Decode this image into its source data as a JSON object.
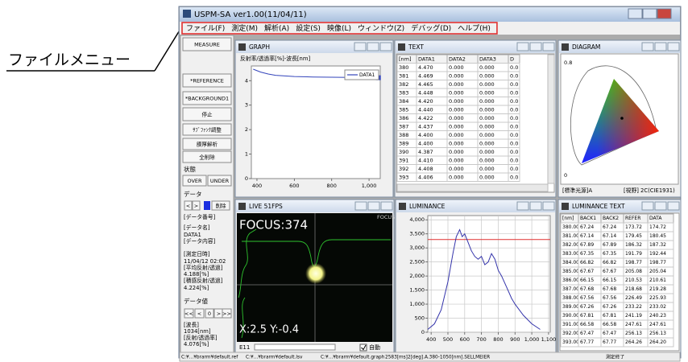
{
  "window": {
    "title": "USPM-SA ver1.00(11/04/11)"
  },
  "annotation": "ファイルメニュー",
  "menu": [
    "ファイル(F)",
    "測定(M)",
    "解析(A)",
    "設定(S)",
    "映像(L)",
    "ウィンドウ(Z)",
    "デバッグ(D)",
    "ヘルプ(H)"
  ],
  "sidebar": {
    "buttons": [
      "MEASURE",
      "*REFERENCE",
      "*BACKGROUND1",
      "停止",
      "ｻﾌﾞﾌｧﾝｸ調整",
      "膜厚解析",
      "全削除"
    ],
    "state_label": "状態",
    "state_buttons": [
      "OVER",
      "UNDER"
    ],
    "data_label": "データ",
    "data_nav": [
      "<",
      ">"
    ],
    "delete": "削除",
    "info": [
      "[データ番号]",
      "[データ名]",
      "DATA1",
      "[データ内容]",
      "[測定日時]",
      "11/04/12 02:02",
      "[平均反射/透過]",
      "4.188[%]",
      "[積感反射/透過]",
      "4.224[%]"
    ],
    "value_label": "データ値",
    "value_nav": [
      "<<",
      "<",
      "0",
      ">",
      ">>"
    ],
    "value_info": [
      "[波長]",
      "1034[nm]",
      "[反射/透過率]",
      "4.076[%]"
    ]
  },
  "panels": {
    "graph": "GRAPH",
    "text": "TEXT",
    "diagram": "DIAGRAM",
    "live": "LIVE 51FPS",
    "luminance": "LUMINANCE",
    "luminance_text": "LUMINANCE TEXT"
  },
  "text_table": {
    "header": [
      "[nm]",
      "DATA1",
      "DATA2",
      "DATA3",
      "D"
    ],
    "rows": [
      [
        "380",
        "4.470",
        "0.000",
        "0.000",
        "0.0"
      ],
      [
        "381",
        "4.469",
        "0.000",
        "0.000",
        "0.0"
      ],
      [
        "382",
        "4.465",
        "0.000",
        "0.000",
        "0.0"
      ],
      [
        "383",
        "4.448",
        "0.000",
        "0.000",
        "0.0"
      ],
      [
        "384",
        "4.420",
        "0.000",
        "0.000",
        "0.0"
      ],
      [
        "385",
        "4.440",
        "0.000",
        "0.000",
        "0.0"
      ],
      [
        "386",
        "4.422",
        "0.000",
        "0.000",
        "0.0"
      ],
      [
        "387",
        "4.437",
        "0.000",
        "0.000",
        "0.0"
      ],
      [
        "388",
        "4.400",
        "0.000",
        "0.000",
        "0.0"
      ],
      [
        "389",
        "4.400",
        "0.000",
        "0.000",
        "0.0"
      ],
      [
        "390",
        "4.387",
        "0.000",
        "0.000",
        "0.0"
      ],
      [
        "391",
        "4.410",
        "0.000",
        "0.000",
        "0.0"
      ],
      [
        "392",
        "4.408",
        "0.000",
        "0.000",
        "0.0"
      ],
      [
        "393",
        "4.406",
        "0.000",
        "0.000",
        "0.0"
      ]
    ]
  },
  "diagram": {
    "axis_labels": [
      "0.8",
      "0"
    ],
    "footer": [
      "[標準光源]A",
      "[視野] 2C(CIE1931)"
    ]
  },
  "live": {
    "focus": "FOCUS:374",
    "tag": "FOCUS",
    "position": "X:2.5 Y:-0.4",
    "exposure": "E11",
    "auto": "自動"
  },
  "luminance_table": {
    "header": [
      "[nm]",
      "BACK1",
      "BACK2",
      "REFER",
      "DATA"
    ],
    "rows": [
      [
        "380.00",
        "67.24",
        "67.24",
        "173.72",
        "174.72"
      ],
      [
        "381.00",
        "67.14",
        "67.14",
        "179.45",
        "180.45"
      ],
      [
        "382.00",
        "67.89",
        "67.89",
        "186.32",
        "187.32"
      ],
      [
        "383.00",
        "67.35",
        "67.35",
        "191.79",
        "192.44"
      ],
      [
        "384.00",
        "66.82",
        "66.82",
        "198.77",
        "198.77"
      ],
      [
        "385.00",
        "67.67",
        "67.67",
        "205.08",
        "205.04"
      ],
      [
        "386.00",
        "66.15",
        "66.15",
        "210.53",
        "210.61"
      ],
      [
        "387.00",
        "67.68",
        "67.68",
        "218.68",
        "219.28"
      ],
      [
        "388.00",
        "67.56",
        "67.56",
        "226.49",
        "225.93"
      ],
      [
        "389.00",
        "67.26",
        "67.26",
        "233.22",
        "233.02"
      ],
      [
        "390.00",
        "67.81",
        "67.81",
        "241.19",
        "240.23"
      ],
      [
        "391.00",
        "66.58",
        "66.58",
        "247.61",
        "247.61"
      ],
      [
        "392.00",
        "67.47",
        "67.47",
        "256.13",
        "256.13"
      ],
      [
        "393.00",
        "67.77",
        "67.77",
        "264.26",
        "264.20"
      ]
    ]
  },
  "status_bar": [
    "C:¥...¥brarm¥default.ref",
    "C:¥...¥brarm¥default.lsv",
    "C:¥...¥brarm¥default.graph",
    "2583[ms]",
    "2[deg].A.380-1050[nm].SELLMEIER",
    "測定終了"
  ],
  "chart_data": [
    {
      "type": "line",
      "title": "反射率/透過率[%]-波長[nm]",
      "x": [
        380,
        420,
        460,
        500,
        600,
        700,
        800,
        900,
        1000,
        1050
      ],
      "series": [
        {
          "name": "DATA1",
          "color": "#3344bb",
          "values": [
            4.47,
            4.35,
            4.27,
            4.22,
            4.17,
            4.15,
            4.14,
            4.13,
            4.12,
            4.12
          ]
        }
      ],
      "xlim": [
        370,
        1060
      ],
      "xticks": [
        400,
        600,
        800,
        {
          "value": 1000,
          "label": "1,000"
        }
      ],
      "ylim": [
        0,
        4.6
      ],
      "yticks": [
        0,
        1,
        2,
        3,
        4
      ],
      "grid": false
    },
    {
      "type": "line",
      "color": "#3333aa",
      "x": [
        380,
        420,
        460,
        500,
        530,
        550,
        570,
        585,
        600,
        620,
        640,
        660,
        680,
        700,
        720,
        740,
        760,
        780,
        800,
        820,
        850,
        880,
        900,
        950,
        1000,
        1050
      ],
      "values": [
        100,
        300,
        800,
        1800,
        2800,
        3400,
        3650,
        3400,
        3500,
        3200,
        2900,
        2700,
        2600,
        2700,
        2400,
        2500,
        2800,
        2600,
        2200,
        2000,
        1600,
        1200,
        1000,
        600,
        300,
        100
      ],
      "reference_line": 3300,
      "reference_color": "#e03030",
      "xlim": [
        380,
        1110
      ],
      "xticks": [
        400,
        500,
        600,
        700,
        800,
        900,
        {
          "value": 1000,
          "label": "1,000"
        },
        {
          "value": 1100,
          "label": "1,100"
        }
      ],
      "ylim": [
        0,
        4150
      ],
      "yticks": [
        0,
        500,
        {
          "value": 1000,
          "label": "1,000"
        },
        {
          "value": 1500,
          "label": "1,500"
        },
        {
          "value": 2000,
          "label": "2,000"
        },
        {
          "value": 2500,
          "label": "2,500"
        },
        {
          "value": 3000,
          "label": "3,000"
        },
        {
          "value": 3500,
          "label": "3,500"
        },
        {
          "value": 4000,
          "label": "4,000"
        }
      ],
      "grid": true
    }
  ]
}
